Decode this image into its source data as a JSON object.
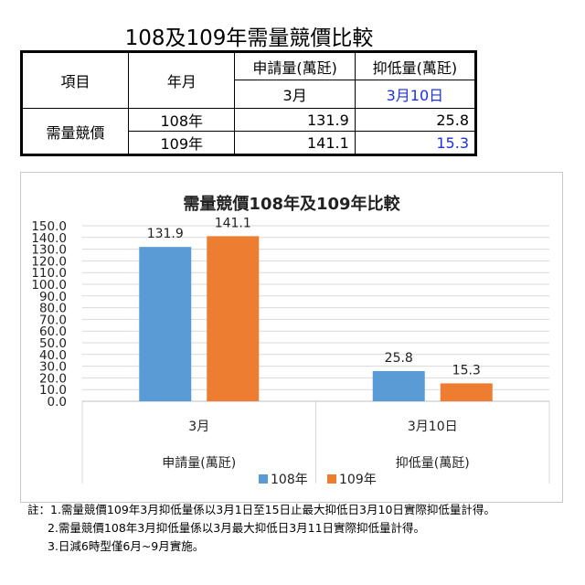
{
  "table": {
    "title": "108及109年需量競價比較",
    "headers": {
      "item": "項目",
      "year_month": "年月",
      "col_apply": "申請量(萬瓩)",
      "col_curtail": "抑低量(萬瓩)",
      "col_apply_date": "3月",
      "col_curtail_date": "3月10日"
    },
    "row_label": "需量競價",
    "rows": [
      {
        "year": "108年",
        "apply": "131.9",
        "curtail": "25.8"
      },
      {
        "year": "109年",
        "apply": "141.1",
        "curtail": "15.3"
      }
    ]
  },
  "chart_data": {
    "type": "bar",
    "title": "需量競價108年及109年比較",
    "categories": [
      {
        "label": "3月",
        "group": "申請量(萬瓩)"
      },
      {
        "label": "3月10日",
        "group": "抑低量(萬瓩)"
      }
    ],
    "series": [
      {
        "name": "108年",
        "color": "#5b9bd5",
        "values": [
          131.9,
          25.8
        ]
      },
      {
        "name": "109年",
        "color": "#ed7d31",
        "values": [
          141.1,
          15.3
        ]
      }
    ],
    "ylim": [
      0,
      150
    ],
    "ytick_step": 10,
    "grid": true,
    "legend": "bottom"
  },
  "notes": [
    "註：1.需量競價109年3月抑低量係以3月1日至15日止最大抑低日3月10日實際抑低量計得。",
    "2.需量競價108年3月抑低量係以3月最大抑低日3月11日實際抑低量計得。",
    "3.日減6時型僅6月~9月實施。"
  ]
}
